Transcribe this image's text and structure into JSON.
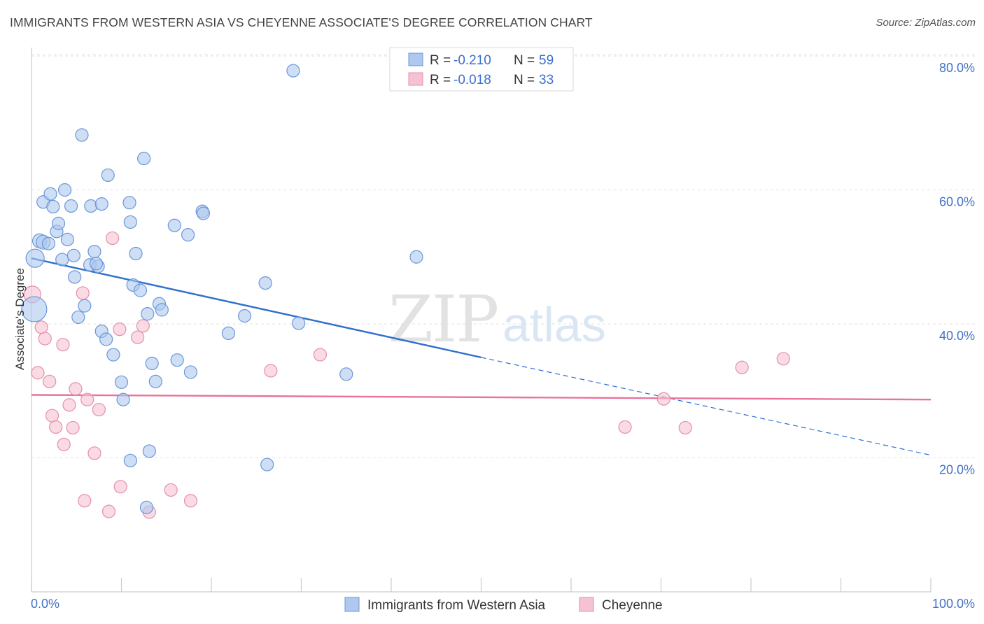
{
  "title": "IMMIGRANTS FROM WESTERN ASIA VS CHEYENNE ASSOCIATE'S DEGREE CORRELATION CHART",
  "source": "Source: ZipAtlas.com",
  "watermark": {
    "zip": "ZIP",
    "atlas": "atlas"
  },
  "colors": {
    "blue_fill": "#aec8ef",
    "blue_stroke": "#6a97d8",
    "blue_line": "#2f6fce",
    "pink_fill": "#f6c1d1",
    "pink_stroke": "#e58fac",
    "pink_line": "#e8739c",
    "axis_label": "#4472c4",
    "grid": "#e0e0e0"
  },
  "legend": {
    "rows": [
      {
        "r_label": "R =",
        "r_value": "-0.210",
        "n_label": "N =",
        "n_value": "59",
        "series": "blue"
      },
      {
        "r_label": "R =",
        "r_value": "-0.018",
        "n_label": "N =",
        "n_value": "33",
        "series": "pink"
      }
    ]
  },
  "chart_data": {
    "type": "scatter",
    "title": "IMMIGRANTS FROM WESTERN ASIA VS CHEYENNE ASSOCIATE'S DEGREE CORRELATION CHART",
    "xlabel": "",
    "ylabel": "Associate's Degree",
    "xlim": [
      0,
      100
    ],
    "ylim": [
      0,
      84
    ],
    "x_tick_labels": [
      "0.0%",
      "100.0%"
    ],
    "y_ticks": [
      20,
      40,
      60,
      80
    ],
    "y_tick_labels": [
      "20.0%",
      "40.0%",
      "60.0%",
      "80.0%"
    ],
    "legend_position": "top-center",
    "series": [
      {
        "name": "Immigrants from Western Asia",
        "color": "blue",
        "R": -0.21,
        "N": 59,
        "trend": {
          "x0": 0,
          "y0": 49.8,
          "x1": 50,
          "y1": 35.0,
          "dashed_to_x": 100,
          "dashed_to_y": 20.4
        },
        "points": [
          [
            0.3,
            42.2,
            18
          ],
          [
            0.4,
            49.8,
            13
          ],
          [
            0.9,
            52.4,
            10
          ],
          [
            1.3,
            52.2,
            10
          ],
          [
            1.9,
            52.0,
            9
          ],
          [
            1.3,
            58.2,
            9
          ],
          [
            2.1,
            59.4,
            9
          ],
          [
            2.4,
            57.5,
            9
          ],
          [
            3.7,
            60.0,
            9
          ],
          [
            4.4,
            57.6,
            9
          ],
          [
            2.8,
            53.8,
            9
          ],
          [
            3.0,
            55.0,
            9
          ],
          [
            3.4,
            49.6,
            9
          ],
          [
            4.0,
            52.6,
            9
          ],
          [
            4.7,
            50.2,
            9
          ],
          [
            4.8,
            47.0,
            9
          ],
          [
            5.2,
            41.0,
            9
          ],
          [
            5.9,
            42.7,
            9
          ],
          [
            5.6,
            68.2,
            9
          ],
          [
            6.5,
            48.8,
            9
          ],
          [
            6.6,
            57.6,
            9
          ],
          [
            7.0,
            50.8,
            9
          ],
          [
            7.4,
            48.6,
            9
          ],
          [
            7.2,
            49.0,
            9
          ],
          [
            7.8,
            57.9,
            9
          ],
          [
            8.5,
            62.2,
            9
          ],
          [
            7.8,
            38.9,
            9
          ],
          [
            8.3,
            37.7,
            9
          ],
          [
            9.1,
            35.4,
            9
          ],
          [
            10.0,
            31.3,
            9
          ],
          [
            10.2,
            28.7,
            9
          ],
          [
            10.9,
            58.1,
            9
          ],
          [
            11.0,
            55.2,
            9
          ],
          [
            11.3,
            45.8,
            9
          ],
          [
            11.6,
            50.5,
            9
          ],
          [
            12.1,
            45.0,
            9
          ],
          [
            12.5,
            64.7,
            9
          ],
          [
            12.9,
            41.5,
            9
          ],
          [
            13.1,
            21.0,
            9
          ],
          [
            13.4,
            34.1,
            9
          ],
          [
            13.8,
            31.4,
            9
          ],
          [
            14.2,
            43.0,
            9
          ],
          [
            14.5,
            42.1,
            9
          ],
          [
            12.8,
            12.6,
            9
          ],
          [
            11.0,
            19.6,
            9
          ],
          [
            15.9,
            54.7,
            9
          ],
          [
            16.2,
            34.6,
            9
          ],
          [
            17.4,
            53.3,
            9
          ],
          [
            17.7,
            32.8,
            9
          ],
          [
            19.0,
            56.8,
            9
          ],
          [
            19.1,
            56.5,
            9
          ],
          [
            21.9,
            38.6,
            9
          ],
          [
            23.7,
            41.2,
            9
          ],
          [
            26.2,
            19.0,
            9
          ],
          [
            26.0,
            46.1,
            9
          ],
          [
            29.1,
            77.8,
            9
          ],
          [
            29.7,
            40.1,
            9
          ],
          [
            35.0,
            32.5,
            9
          ],
          [
            42.8,
            50.0,
            9
          ]
        ]
      },
      {
        "name": "Cheyenne",
        "color": "pink",
        "R": -0.018,
        "N": 33,
        "trend": {
          "x0": 0,
          "y0": 29.4,
          "x1": 100,
          "y1": 28.7
        },
        "points": [
          [
            0.1,
            44.4,
            12
          ],
          [
            0.7,
            32.7,
            9
          ],
          [
            1.1,
            39.5,
            9
          ],
          [
            1.5,
            37.8,
            9
          ],
          [
            2.0,
            31.4,
            9
          ],
          [
            2.3,
            26.3,
            9
          ],
          [
            2.7,
            24.6,
            9
          ],
          [
            3.5,
            36.9,
            9
          ],
          [
            3.6,
            22.0,
            9
          ],
          [
            4.2,
            27.9,
            9
          ],
          [
            4.6,
            24.5,
            9
          ],
          [
            4.9,
            30.3,
            9
          ],
          [
            5.7,
            44.6,
            9
          ],
          [
            5.9,
            13.6,
            9
          ],
          [
            6.2,
            28.7,
            9
          ],
          [
            7.0,
            20.7,
            9
          ],
          [
            7.5,
            27.2,
            9
          ],
          [
            8.6,
            12.0,
            9
          ],
          [
            9.0,
            52.8,
            9
          ],
          [
            9.8,
            39.2,
            9
          ],
          [
            9.9,
            15.7,
            9
          ],
          [
            11.8,
            38.0,
            9
          ],
          [
            12.4,
            39.7,
            9
          ],
          [
            13.1,
            11.9,
            9
          ],
          [
            15.5,
            15.2,
            9
          ],
          [
            17.7,
            13.6,
            9
          ],
          [
            26.6,
            33.0,
            9
          ],
          [
            32.1,
            35.4,
            9
          ],
          [
            66.0,
            24.6,
            9
          ],
          [
            70.3,
            28.8,
            9
          ],
          [
            72.7,
            24.5,
            9
          ],
          [
            79.0,
            33.5,
            9
          ],
          [
            83.6,
            34.8,
            9
          ]
        ]
      }
    ]
  }
}
